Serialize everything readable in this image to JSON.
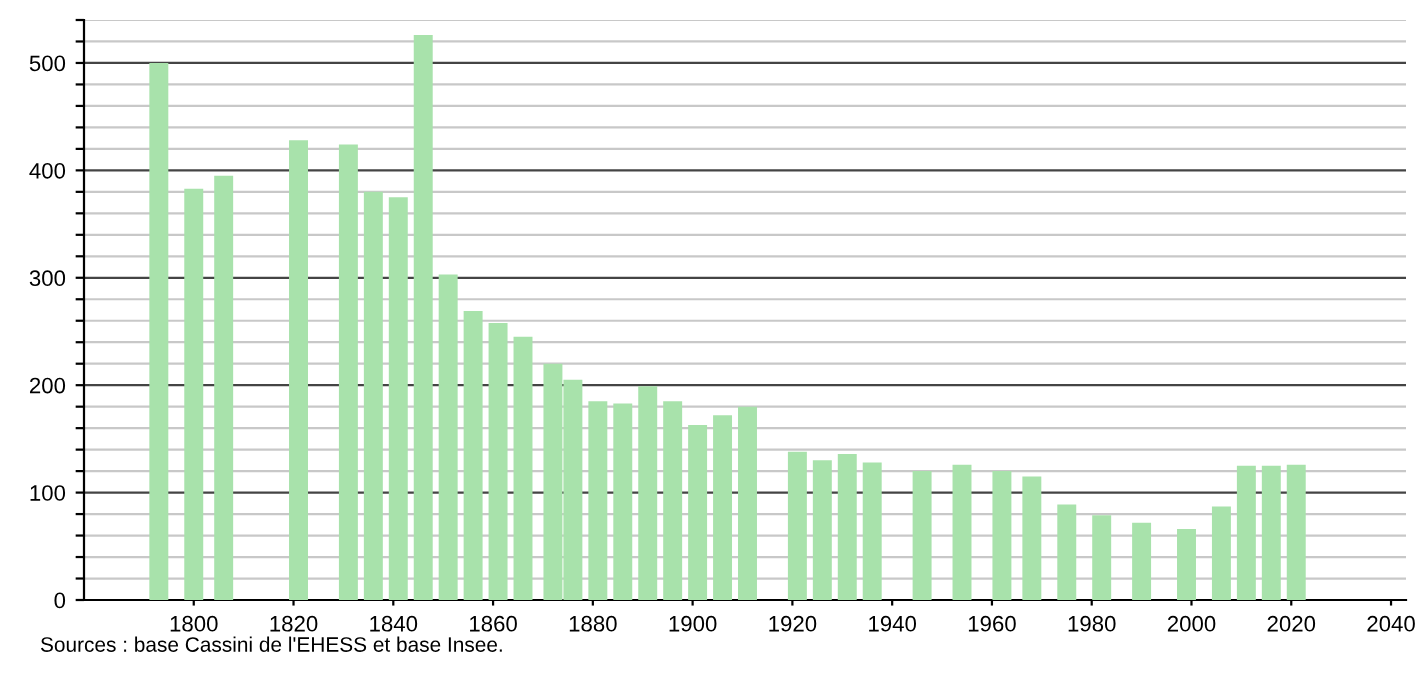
{
  "chart_data": {
    "type": "bar",
    "x": [
      1793,
      1800,
      1806,
      1821,
      1831,
      1836,
      1841,
      1846,
      1851,
      1856,
      1861,
      1866,
      1872,
      1876,
      1881,
      1886,
      1891,
      1896,
      1901,
      1906,
      1911,
      1921,
      1926,
      1931,
      1936,
      1946,
      1954,
      1962,
      1968,
      1975,
      1982,
      1990,
      1999,
      2006,
      2011,
      2016,
      2021
    ],
    "values": [
      500,
      383,
      395,
      428,
      424,
      380,
      375,
      526,
      303,
      269,
      258,
      245,
      220,
      205,
      185,
      183,
      199,
      185,
      163,
      172,
      180,
      138,
      130,
      136,
      128,
      120,
      126,
      120,
      115,
      89,
      79,
      72,
      66,
      87,
      125,
      125,
      126
    ],
    "color": "#a8e2ab",
    "xlim": [
      1778,
      2043
    ],
    "xticks": [
      1800,
      1820,
      1840,
      1860,
      1880,
      1900,
      1920,
      1940,
      1960,
      1980,
      2000,
      2020,
      2040
    ],
    "ylim": [
      0,
      540
    ],
    "yticks": [
      0,
      {
        "value": 20,
        "label": null
      },
      {
        "value": 40,
        "label": null
      },
      {
        "value": 60,
        "label": null
      },
      {
        "value": 80,
        "label": null
      },
      100,
      {
        "value": 120,
        "label": null
      },
      {
        "value": 140,
        "label": null
      },
      {
        "value": 160,
        "label": null
      },
      {
        "value": 180,
        "label": null
      },
      200,
      {
        "value": 220,
        "label": null
      },
      {
        "value": 240,
        "label": null
      },
      {
        "value": 260,
        "label": null
      },
      {
        "value": 280,
        "label": null
      },
      300,
      {
        "value": 320,
        "label": null
      },
      {
        "value": 340,
        "label": null
      },
      {
        "value": 360,
        "label": null
      },
      {
        "value": 380,
        "label": null
      },
      400,
      {
        "value": 420,
        "label": null
      },
      {
        "value": 440,
        "label": null
      },
      {
        "value": 460,
        "label": null
      },
      {
        "value": 480,
        "label": null
      },
      500,
      {
        "value": 520,
        "label": null
      },
      {
        "value": 540,
        "label": null
      }
    ],
    "grid": "y",
    "annotations": [
      "Sources : base Cassini de l'EHESS et base Insee."
    ]
  }
}
